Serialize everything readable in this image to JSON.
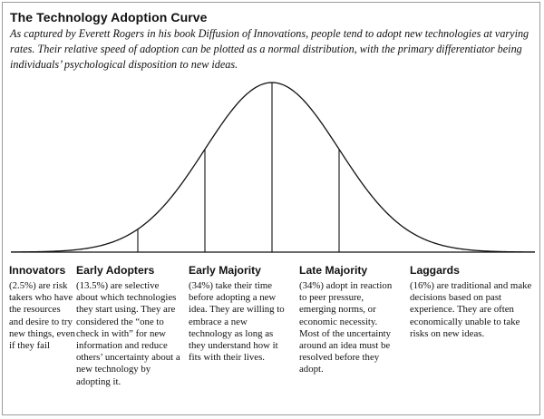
{
  "title": "The Technology Adoption Curve",
  "subtitle": "As captured by Everett Rogers in his book Diffusion of Innovations, people tend to adopt new technologies at varying rates. Their relative speed of adoption can be plotted as a normal distribution, with the primary differentiator being individuals’ psychological disposition to new ideas.",
  "curve": {
    "distribution": "normal",
    "dividers_sigma": [
      -2,
      -1,
      0,
      1
    ]
  },
  "segments": [
    {
      "name": "Innovators",
      "share_percent": 2.5,
      "description": "(2.5%) are risk takers who have the resources and desire to try new things, even if they fail"
    },
    {
      "name": "Early Adopters",
      "share_percent": 13.5,
      "description": "(13.5%) are selective about which technologies they start using. They are considered the “one to check in with” for new information and reduce others’ uncertainty about a new technology by adopting it."
    },
    {
      "name": "Early Majority",
      "share_percent": 34,
      "description": "(34%) take their time before adopting a new idea. They are willing to embrace a new technology as long as they understand how it fits with their lives."
    },
    {
      "name": "Late Majority",
      "share_percent": 34,
      "description": "(34%) adopt in reaction to peer pressure, emerging norms, or economic necessity. Most of the uncertainty around an idea must be resolved before they adopt."
    },
    {
      "name": "Laggards",
      "share_percent": 16,
      "description": "(16%) are traditional and make decisions based on past experience. They are often economically unable to take risks on new ideas."
    }
  ]
}
